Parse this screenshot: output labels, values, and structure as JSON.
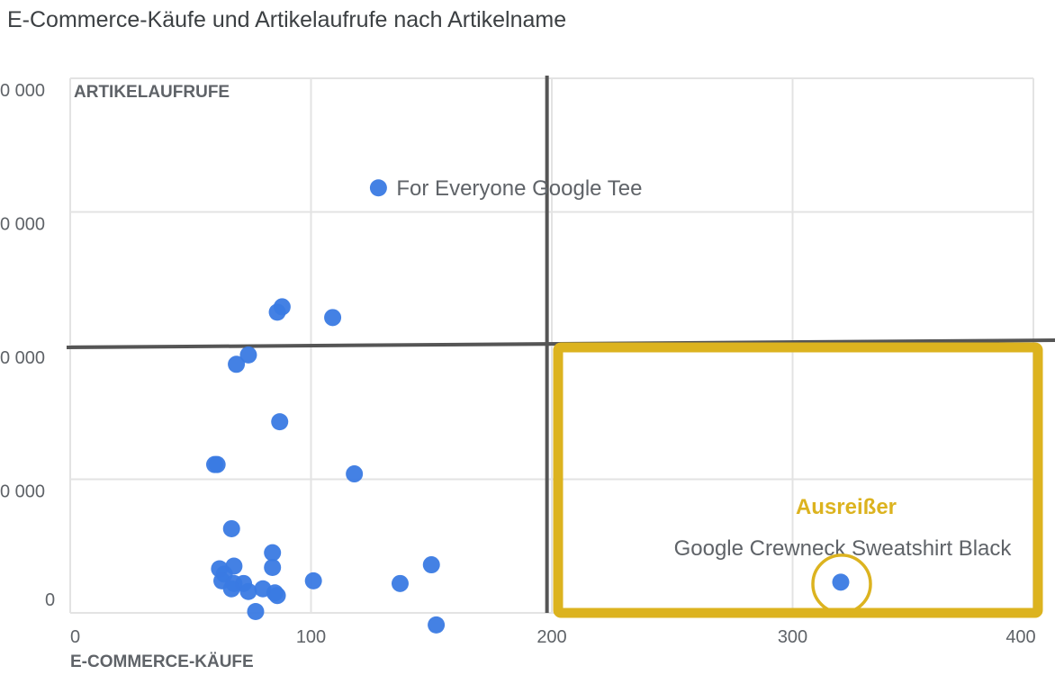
{
  "title": "E-Commerce-Käufe und Artikelaufrufe nach Artikelname",
  "chart_data": {
    "type": "scatter",
    "title": "E-Commerce-Käufe und Artikelaufrufe nach Artikelname",
    "xlabel": "E-COMMERCE-KÄUFE",
    "ylabel": "ARTIKELAUFRUFE",
    "xlim": [
      0,
      400
    ],
    "ylim": [
      0,
      4000
    ],
    "x_ticks": [
      "0",
      "100",
      "200",
      "300",
      "400"
    ],
    "y_ticks": [
      "0",
      "0 000",
      "0 000",
      "0 000",
      "0 000"
    ],
    "grid": true,
    "point_color": "#3a7ae3",
    "points": [
      {
        "x": 128,
        "y": 3180,
        "label": "For Everyone Google Tee"
      },
      {
        "x": 88,
        "y": 2290
      },
      {
        "x": 86,
        "y": 2250
      },
      {
        "x": 109,
        "y": 2210
      },
      {
        "x": 74,
        "y": 1930
      },
      {
        "x": 69,
        "y": 1860
      },
      {
        "x": 87,
        "y": 1430
      },
      {
        "x": 61,
        "y": 1110
      },
      {
        "x": 60,
        "y": 1110
      },
      {
        "x": 118,
        "y": 1040
      },
      {
        "x": 67,
        "y": 630
      },
      {
        "x": 84,
        "y": 450
      },
      {
        "x": 84,
        "y": 340
      },
      {
        "x": 68,
        "y": 350
      },
      {
        "x": 62,
        "y": 330
      },
      {
        "x": 64,
        "y": 290
      },
      {
        "x": 63,
        "y": 240
      },
      {
        "x": 68,
        "y": 220
      },
      {
        "x": 72,
        "y": 220
      },
      {
        "x": 67,
        "y": 180
      },
      {
        "x": 74,
        "y": 160
      },
      {
        "x": 80,
        "y": 180
      },
      {
        "x": 85,
        "y": 150
      },
      {
        "x": 86,
        "y": 130
      },
      {
        "x": 101,
        "y": 240
      },
      {
        "x": 137,
        "y": 220
      },
      {
        "x": 150,
        "y": 360
      },
      {
        "x": 77,
        "y": 10
      },
      {
        "x": 152,
        "y": -90
      },
      {
        "x": 320,
        "y": 230,
        "label": "Google Crewneck Sweatshirt Black"
      }
    ],
    "quadrant_lines": {
      "x": 198,
      "y": 2000,
      "color": "#555555"
    },
    "highlight": {
      "label": "Ausreißer",
      "color": "#dcb31f",
      "x_range": [
        200,
        400
      ],
      "y_range": [
        0,
        2000
      ],
      "point_index": 29
    }
  }
}
